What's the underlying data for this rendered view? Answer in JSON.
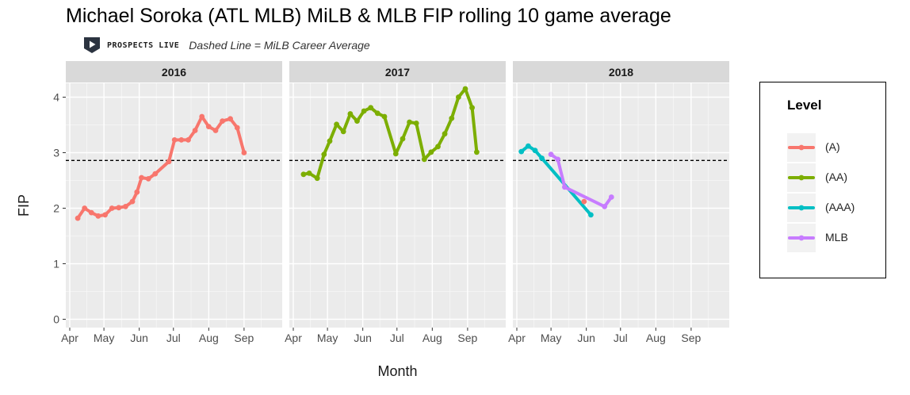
{
  "title": "Michael Soroka (ATL MLB) MiLB & MLB FIP rolling 10 game average",
  "subtitle": "Dashed Line = MiLB Career Average",
  "logo_text": "PROSPECTS LIVE",
  "logo_icon": "play-shield-icon",
  "chart_data": {
    "type": "line",
    "facet_by": "year",
    "facets": [
      "2016",
      "2017",
      "2018"
    ],
    "xlabel": "Month",
    "ylabel": "FIP",
    "x_ticks": [
      "Apr",
      "May",
      "Jun",
      "Jul",
      "Aug",
      "Sep"
    ],
    "y_ticks": [
      0,
      1,
      2,
      3,
      4
    ],
    "ylim": [
      -0.15,
      4.25
    ],
    "xlim": [
      "04-01",
      "09-30"
    ],
    "reference_line": {
      "y": 2.86,
      "style": "dashed",
      "note": "MiLB Career Average"
    },
    "legend": {
      "title": "Level",
      "position": "right"
    },
    "colors": {
      "(A)": "#F8766D",
      "(AA)": "#7CAE00",
      "(AAA)": "#00BFC4",
      "MLB": "#C77CFF"
    },
    "series": [
      {
        "name": "(A)",
        "facet": "2016",
        "points": [
          [
            "04-08",
            1.82
          ],
          [
            "04-14",
            2.0
          ],
          [
            "04-20",
            1.92
          ],
          [
            "04-26",
            1.86
          ],
          [
            "05-02",
            1.88
          ],
          [
            "05-08",
            2.0
          ],
          [
            "05-14",
            2.01
          ],
          [
            "05-20",
            2.03
          ],
          [
            "05-26",
            2.12
          ],
          [
            "05-30",
            2.29
          ],
          [
            "06-03",
            2.55
          ],
          [
            "06-09",
            2.53
          ],
          [
            "06-15",
            2.62
          ],
          [
            "06-27",
            2.84
          ],
          [
            "07-02",
            3.23
          ],
          [
            "07-08",
            3.23
          ],
          [
            "07-14",
            3.23
          ],
          [
            "07-20",
            3.4
          ],
          [
            "07-26",
            3.65
          ],
          [
            "08-01",
            3.47
          ],
          [
            "08-07",
            3.4
          ],
          [
            "08-13",
            3.57
          ],
          [
            "08-20",
            3.61
          ],
          [
            "08-26",
            3.45
          ],
          [
            "09-01",
            3.0
          ]
        ]
      },
      {
        "name": "(AA)",
        "facet": "2017",
        "points": [
          [
            "04-10",
            2.61
          ],
          [
            "04-15",
            2.63
          ],
          [
            "04-22",
            2.54
          ],
          [
            "04-28",
            2.97
          ],
          [
            "05-03",
            3.21
          ],
          [
            "05-09",
            3.51
          ],
          [
            "05-15",
            3.38
          ],
          [
            "05-21",
            3.7
          ],
          [
            "05-27",
            3.57
          ],
          [
            "06-02",
            3.75
          ],
          [
            "06-08",
            3.81
          ],
          [
            "06-14",
            3.71
          ],
          [
            "06-20",
            3.65
          ],
          [
            "06-30",
            2.98
          ],
          [
            "07-06",
            3.25
          ],
          [
            "07-12",
            3.55
          ],
          [
            "07-18",
            3.53
          ],
          [
            "07-25",
            2.88
          ],
          [
            "07-31",
            3.01
          ],
          [
            "08-06",
            3.11
          ],
          [
            "08-12",
            3.34
          ],
          [
            "08-18",
            3.62
          ],
          [
            "08-24",
            4.0
          ],
          [
            "08-30",
            4.15
          ],
          [
            "09-05",
            3.81
          ],
          [
            "09-09",
            3.01
          ]
        ]
      },
      {
        "name": "(AAA)",
        "facet": "2018",
        "points": [
          [
            "04-05",
            3.02
          ],
          [
            "04-11",
            3.12
          ],
          [
            "04-17",
            3.04
          ],
          [
            "04-23",
            2.9
          ],
          [
            "06-05",
            1.88
          ]
        ]
      },
      {
        "name": "(A)",
        "facet": "2018",
        "points": [
          [
            "05-30",
            2.12
          ]
        ]
      },
      {
        "name": "MLB",
        "facet": "2018",
        "points": [
          [
            "05-01",
            2.97
          ],
          [
            "05-07",
            2.88
          ],
          [
            "05-13",
            2.38
          ],
          [
            "06-17",
            2.03
          ],
          [
            "06-23",
            2.2
          ]
        ]
      }
    ]
  },
  "legend": {
    "title": "Level",
    "items": [
      {
        "label": "(A)",
        "color": "#F8766D"
      },
      {
        "label": "(AA)",
        "color": "#7CAE00"
      },
      {
        "label": "(AAA)",
        "color": "#00BFC4"
      },
      {
        "label": "MLB",
        "color": "#C77CFF"
      }
    ]
  }
}
